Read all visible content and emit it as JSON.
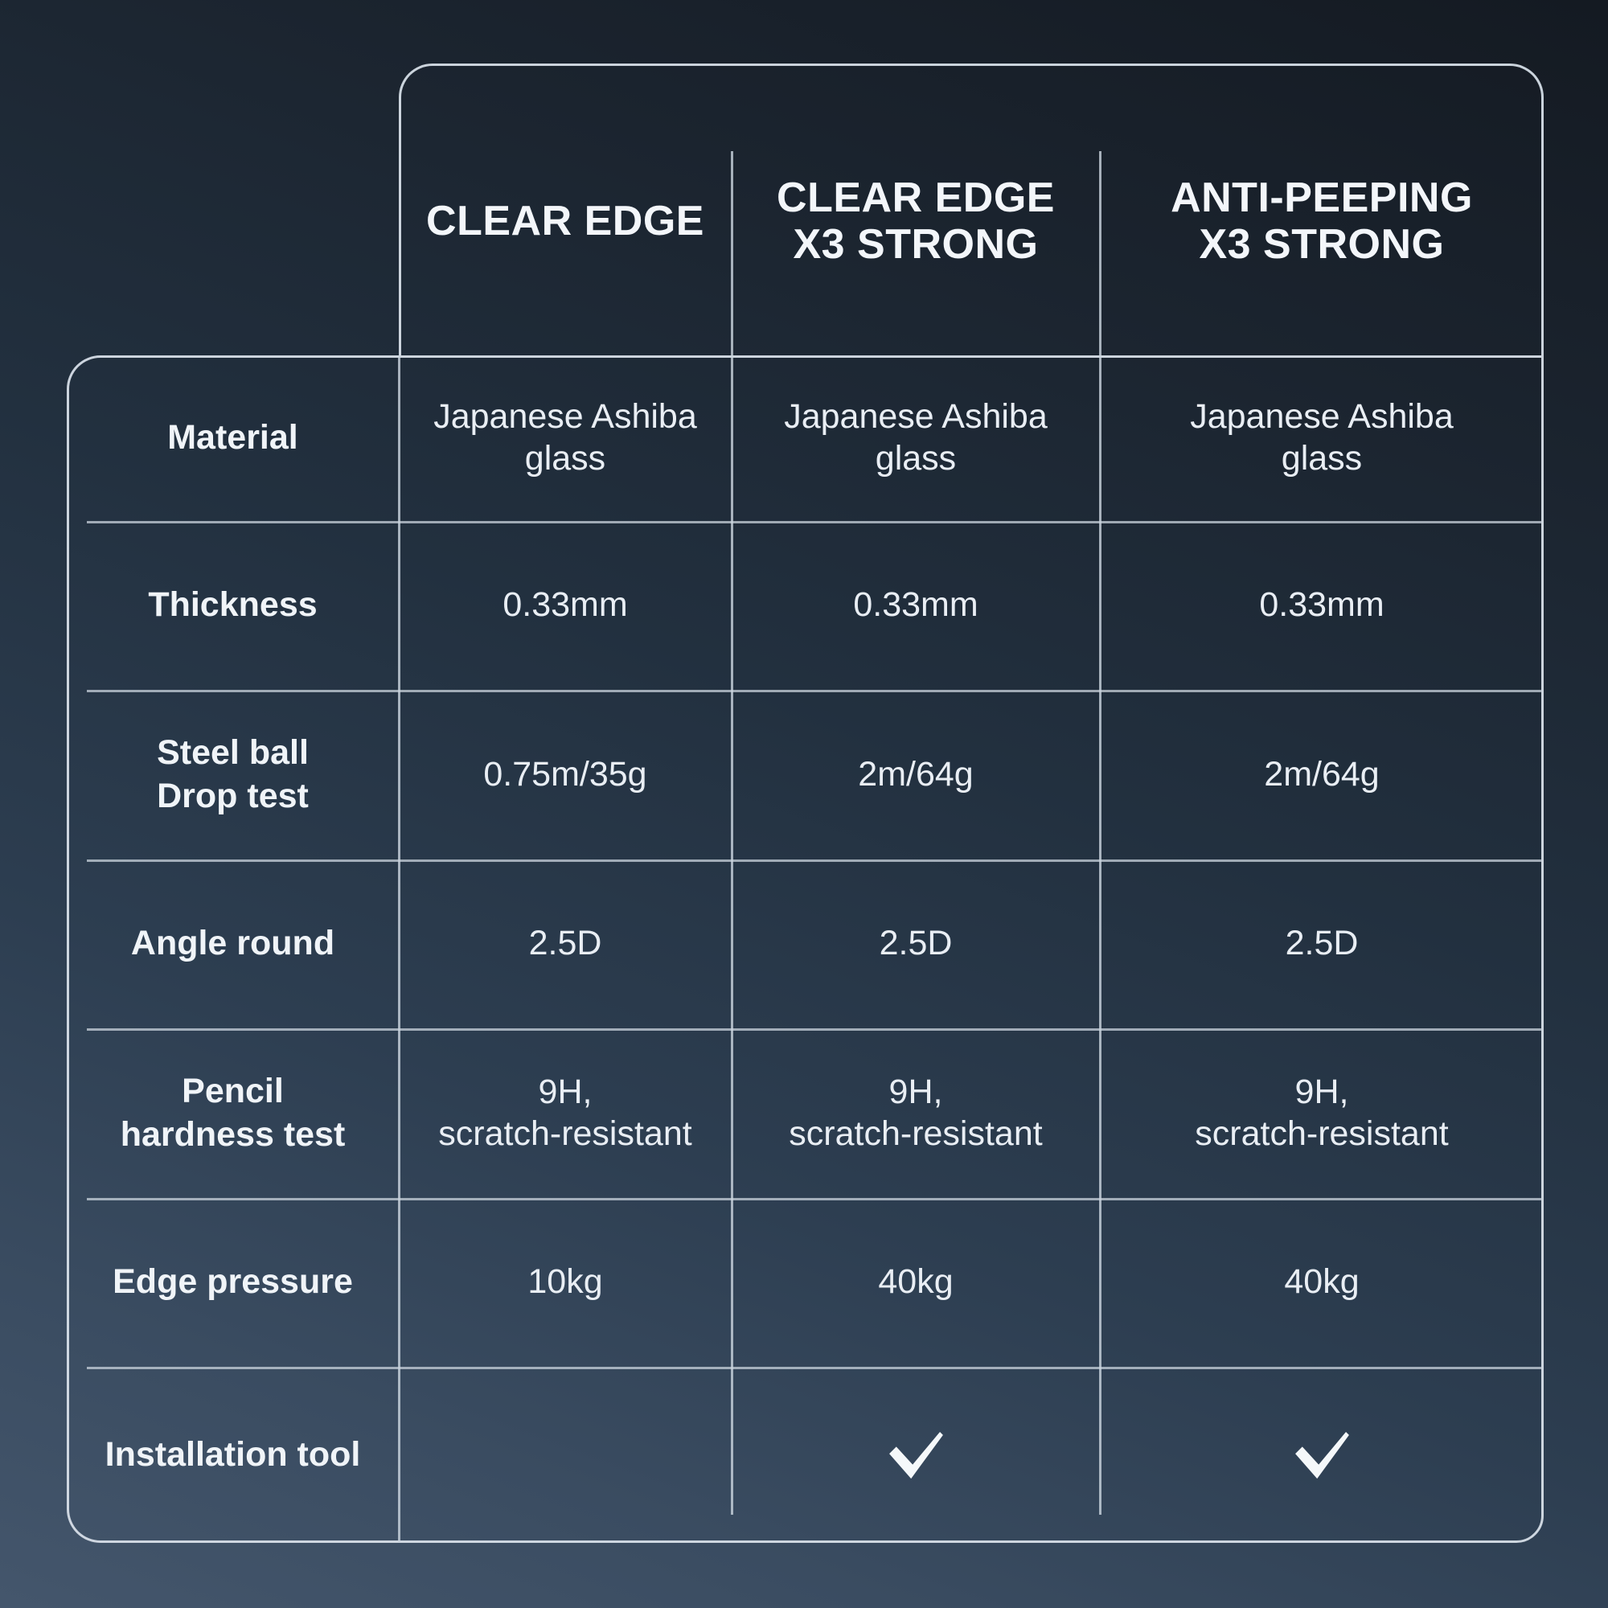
{
  "table": {
    "columns": [
      "CLEAR EDGE",
      "CLEAR EDGE\nX3 STRONG",
      "ANTI-PEEPING\nX3 STRONG"
    ],
    "rows": [
      {
        "label": "Material",
        "values": [
          "Japanese Ashiba\nglass",
          "Japanese Ashiba\nglass",
          "Japanese Ashiba\nglass"
        ],
        "checks": [
          false,
          false,
          false
        ]
      },
      {
        "label": "Thickness",
        "values": [
          "0.33mm",
          "0.33mm",
          "0.33mm"
        ],
        "checks": [
          false,
          false,
          false
        ]
      },
      {
        "label": "Steel ball\nDrop test",
        "values": [
          "0.75m/35g",
          "2m/64g",
          "2m/64g"
        ],
        "checks": [
          false,
          false,
          false
        ]
      },
      {
        "label": "Angle round",
        "values": [
          "2.5D",
          "2.5D",
          "2.5D"
        ],
        "checks": [
          false,
          false,
          false
        ]
      },
      {
        "label": "Pencil\nhardness test",
        "values": [
          "9H,\nscratch-resistant",
          "9H,\nscratch-resistant",
          "9H,\nscratch-resistant"
        ],
        "checks": [
          false,
          false,
          false
        ]
      },
      {
        "label": "Edge pressure",
        "values": [
          "10kg",
          "40kg",
          "40kg"
        ],
        "checks": [
          false,
          false,
          false
        ]
      },
      {
        "label": "Installation tool",
        "values": [
          "",
          "",
          ""
        ],
        "checks": [
          false,
          true,
          true
        ]
      }
    ]
  },
  "icons": {
    "check": "check-icon"
  },
  "colors": {
    "background_top": "#141a22",
    "background_bottom": "#44566c",
    "border": "#dbe3ec",
    "grid_line": "#cbd4de",
    "text": "#eef2f7"
  }
}
